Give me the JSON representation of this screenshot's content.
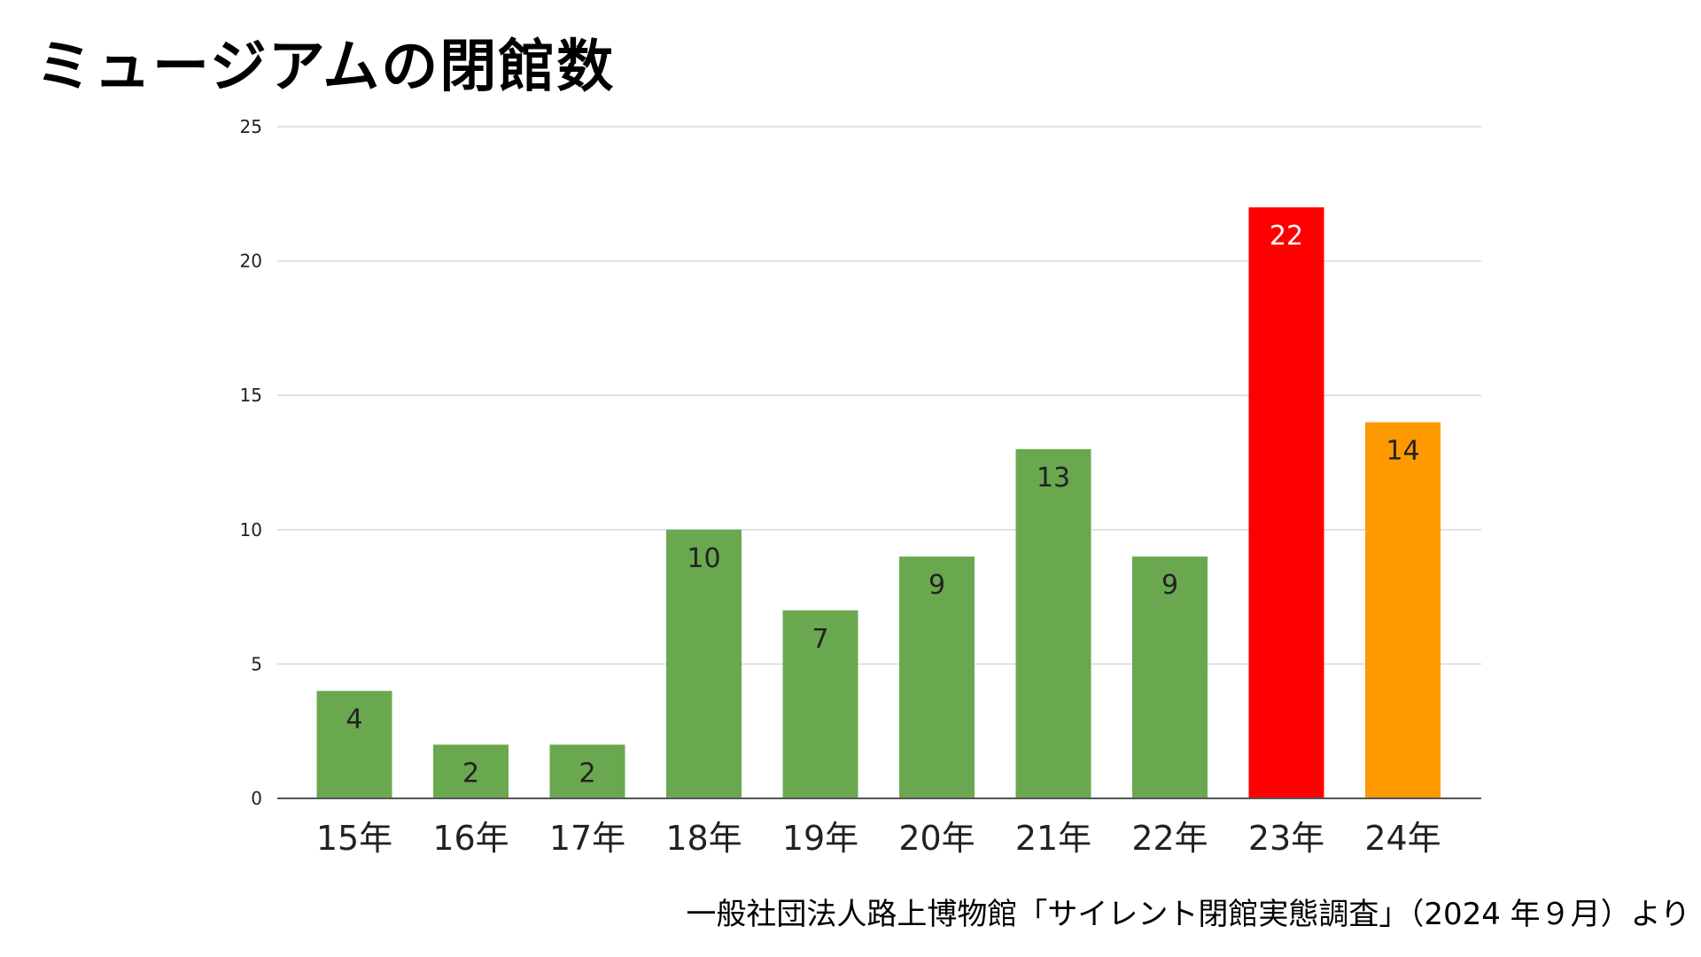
{
  "title": "ミュージアムの閉館数",
  "source": "一般社団法人路上博物館「サイレント閉館実態調査」（2024 年９月）より",
  "colors": {
    "default_bar": "#6aa84f",
    "highlight_bar": "#ff0000",
    "latest_bar": "#ff9900",
    "gridline": "#d9d9d9",
    "baseline": "#555555",
    "label_dark": "#222222",
    "label_light": "#ffffff"
  },
  "chart_data": {
    "type": "bar",
    "title": "ミュージアムの閉館数",
    "xlabel": "",
    "ylabel": "",
    "categories": [
      "15年",
      "16年",
      "17年",
      "18年",
      "19年",
      "20年",
      "21年",
      "22年",
      "23年",
      "24年"
    ],
    "values": [
      4,
      2,
      2,
      10,
      7,
      9,
      13,
      9,
      22,
      14
    ],
    "bar_colors": [
      "#6aa84f",
      "#6aa84f",
      "#6aa84f",
      "#6aa84f",
      "#6aa84f",
      "#6aa84f",
      "#6aa84f",
      "#6aa84f",
      "#ff0000",
      "#ff9900"
    ],
    "label_colors": [
      "#222222",
      "#222222",
      "#222222",
      "#222222",
      "#222222",
      "#222222",
      "#222222",
      "#222222",
      "#ffffff",
      "#222222"
    ],
    "ylim": [
      0,
      25
    ],
    "yticks": [
      "0",
      "5",
      "10",
      "15",
      "20",
      "25"
    ],
    "grid": true,
    "legend": "none",
    "data_labels": true
  }
}
